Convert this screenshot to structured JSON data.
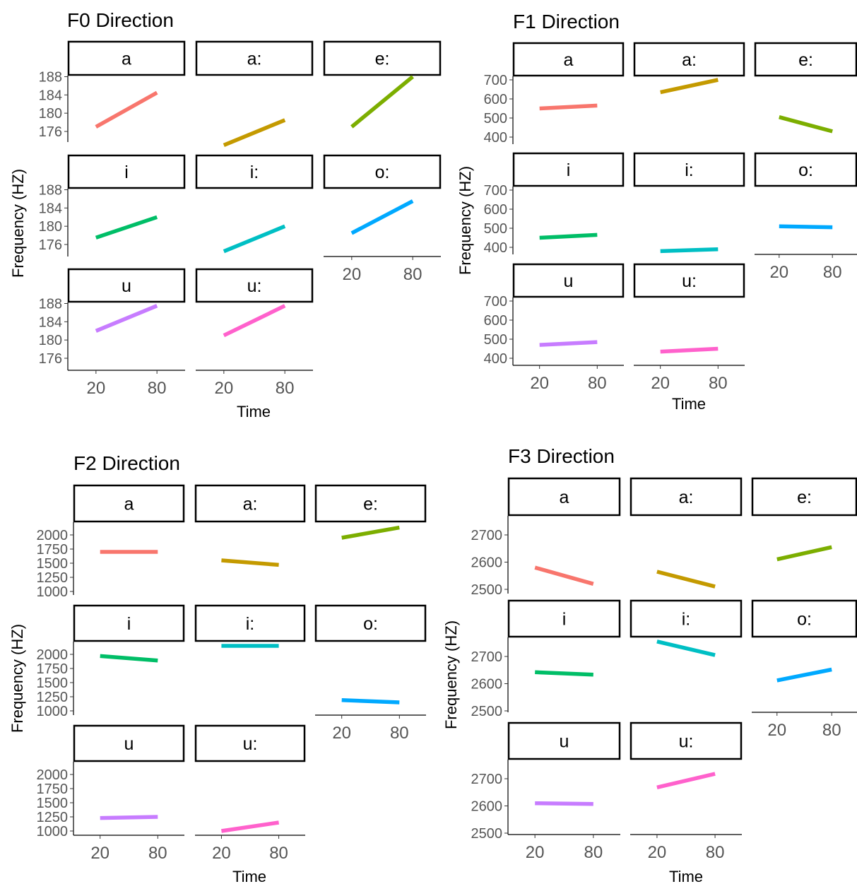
{
  "chart_data": [
    {
      "type": "line",
      "title": "F0 Direction",
      "xlabel": "Time",
      "ylabel": "Frequency (HZ)",
      "x": [
        20,
        80
      ],
      "x_ticks": [
        "20",
        "80"
      ],
      "y_ticks": [
        "176",
        "180",
        "184",
        "188"
      ],
      "ylim": [
        172.5,
        190.5
      ],
      "facets": [
        {
          "name": "a",
          "values": [
            177,
            184.5
          ],
          "color": "#F8766D"
        },
        {
          "name": "a:",
          "values": [
            173,
            178.5
          ],
          "color": "#C49A00"
        },
        {
          "name": "e:",
          "values": [
            177,
            188
          ],
          "color": "#7CAE00"
        },
        {
          "name": "i",
          "values": [
            177.5,
            182
          ],
          "color": "#00BE67"
        },
        {
          "name": "i:",
          "values": [
            174.5,
            180
          ],
          "color": "#00BFC4"
        },
        {
          "name": "o:",
          "values": [
            178.5,
            185.5
          ],
          "color": "#00A9FF"
        },
        {
          "name": "u",
          "values": [
            182,
            187.5
          ],
          "color": "#C77CFF"
        },
        {
          "name": "u:",
          "values": [
            181,
            187.5
          ],
          "color": "#FF61CC"
        }
      ]
    },
    {
      "type": "line",
      "title": "F1 Direction",
      "xlabel": "Time",
      "ylabel": "Frequency (HZ)",
      "x": [
        20,
        80
      ],
      "x_ticks": [
        "20",
        "80"
      ],
      "y_ticks": [
        "400",
        "500",
        "600",
        "700"
      ],
      "ylim": [
        380,
        800
      ],
      "facets": [
        {
          "name": "a",
          "values": [
            550,
            565
          ],
          "color": "#F8766D"
        },
        {
          "name": "a:",
          "values": [
            635,
            700
          ],
          "color": "#C49A00"
        },
        {
          "name": "e:",
          "values": [
            505,
            430
          ],
          "color": "#7CAE00"
        },
        {
          "name": "i",
          "values": [
            450,
            465
          ],
          "color": "#00BE67"
        },
        {
          "name": "i:",
          "values": [
            380,
            390
          ],
          "color": "#00BFC4"
        },
        {
          "name": "o:",
          "values": [
            510,
            505
          ],
          "color": "#00A9FF"
        },
        {
          "name": "u",
          "values": [
            470,
            485
          ],
          "color": "#C77CFF"
        },
        {
          "name": "u:",
          "values": [
            435,
            450
          ],
          "color": "#FF61CC"
        }
      ]
    },
    {
      "type": "line",
      "title": "F2 Direction",
      "xlabel": "Time",
      "ylabel": "Frequency (HZ)",
      "x": [
        20,
        80
      ],
      "x_ticks": [
        "20",
        "80"
      ],
      "y_ticks": [
        "1000",
        "1250",
        "1500",
        "1750",
        "2000"
      ],
      "ylim": [
        950,
        2250
      ],
      "facets": [
        {
          "name": "a",
          "values": [
            1700,
            1700
          ],
          "color": "#F8766D"
        },
        {
          "name": "a:",
          "values": [
            1550,
            1470
          ],
          "color": "#C49A00"
        },
        {
          "name": "e:",
          "values": [
            1950,
            2130
          ],
          "color": "#7CAE00"
        },
        {
          "name": "i",
          "values": [
            1970,
            1890
          ],
          "color": "#00BE67"
        },
        {
          "name": "i:",
          "values": [
            2150,
            2150
          ],
          "color": "#00BFC4"
        },
        {
          "name": "o:",
          "values": [
            1190,
            1150
          ],
          "color": "#00A9FF"
        },
        {
          "name": "u",
          "values": [
            1230,
            1250
          ],
          "color": "#C77CFF"
        },
        {
          "name": "u:",
          "values": [
            1000,
            1150
          ],
          "color": "#FF61CC"
        }
      ]
    },
    {
      "type": "line",
      "title": "F3 Direction",
      "xlabel": "Time",
      "ylabel": "Frequency (HZ)",
      "x": [
        20,
        80
      ],
      "x_ticks": [
        "20",
        "80"
      ],
      "y_ticks": [
        "2500",
        "2600",
        "2700"
      ],
      "ylim": [
        2495,
        2790
      ],
      "facets": [
        {
          "name": "a",
          "values": [
            2580,
            2520
          ],
          "color": "#F8766D"
        },
        {
          "name": "a:",
          "values": [
            2565,
            2510
          ],
          "color": "#C49A00"
        },
        {
          "name": "e:",
          "values": [
            2610,
            2655
          ],
          "color": "#7CAE00"
        },
        {
          "name": "i",
          "values": [
            2642,
            2633
          ],
          "color": "#00BE67"
        },
        {
          "name": "i:",
          "values": [
            2755,
            2705
          ],
          "color": "#00BFC4"
        },
        {
          "name": "o:",
          "values": [
            2612,
            2652
          ],
          "color": "#00A9FF"
        },
        {
          "name": "u",
          "values": [
            2610,
            2607
          ],
          "color": "#C77CFF"
        },
        {
          "name": "u:",
          "values": [
            2668,
            2718
          ],
          "color": "#FF61CC"
        }
      ]
    }
  ]
}
